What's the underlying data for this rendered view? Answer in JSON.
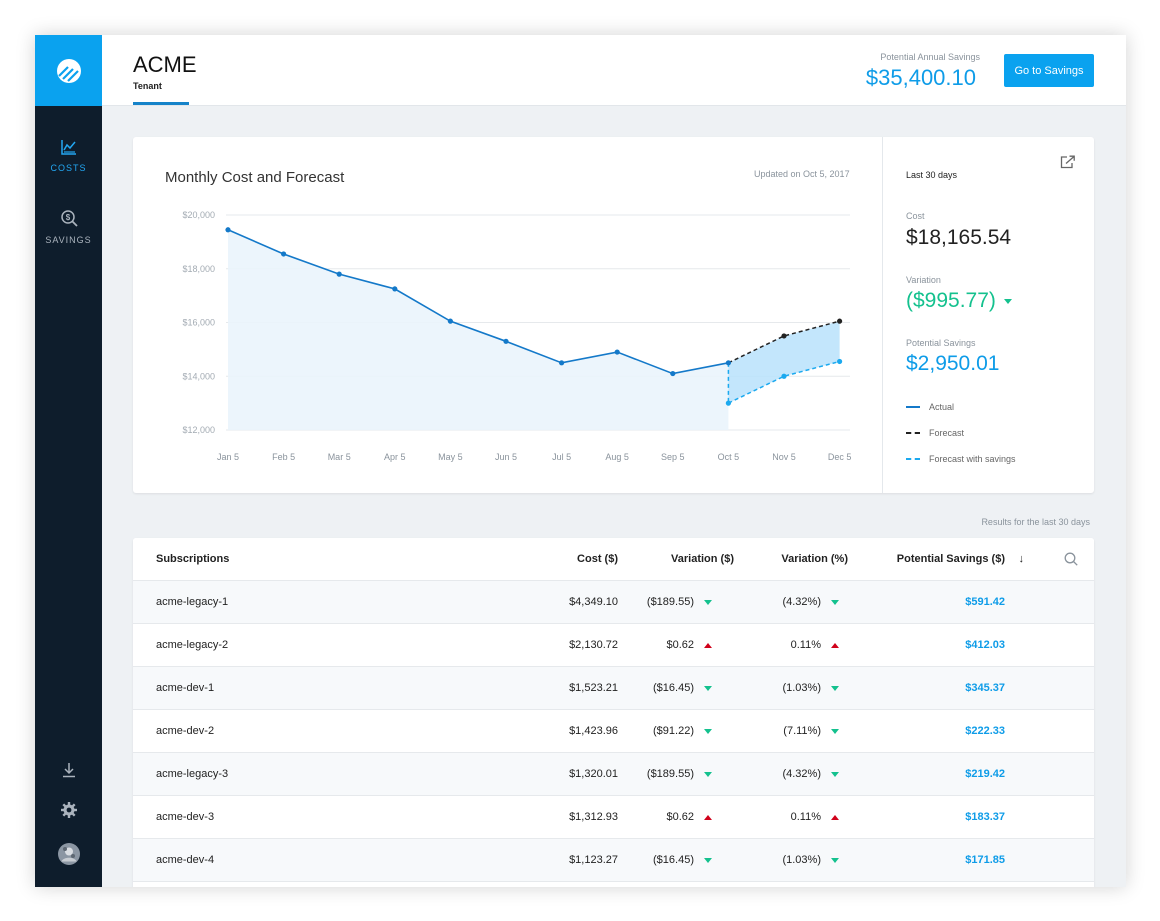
{
  "sidebar": {
    "nav": [
      {
        "label": "COSTS",
        "icon": "chart-line-icon",
        "active": true
      },
      {
        "label": "SAVINGS",
        "icon": "dollar-search-icon",
        "active": false
      }
    ],
    "bottom_icons": [
      "download-icon",
      "gear-icon",
      "avatar"
    ]
  },
  "header": {
    "tenant_name": "ACME",
    "tenant_label": "Tenant",
    "savings_caption": "Potential Annual Savings",
    "savings_total": "$35,400.10",
    "go_button": "Go to Savings"
  },
  "chart_card": {
    "title": "Monthly Cost and Forecast",
    "updated": "Updated on Oct 5, 2017"
  },
  "stats": {
    "period": "Last 30 days",
    "cost_label": "Cost",
    "cost_value": "$18,165.54",
    "variation_label": "Variation",
    "variation_value": "($995.77)",
    "savings_label": "Potential Savings",
    "savings_value": "$2,950.01",
    "legend": [
      {
        "label": "Actual",
        "style": "solid",
        "color": "#1479c9"
      },
      {
        "label": "Forecast",
        "style": "dashed",
        "color": "#222222"
      },
      {
        "label": "Forecast with savings",
        "style": "dashed",
        "color": "#1ba9ef"
      }
    ]
  },
  "chart_data": {
    "type": "line",
    "title": "Monthly Cost and Forecast",
    "categories": [
      "Jan 5",
      "Feb 5",
      "Mar 5",
      "Apr 5",
      "May 5",
      "Jun 5",
      "Jul 5",
      "Aug 5",
      "Sep 5",
      "Oct 5",
      "Nov 5",
      "Dec 5"
    ],
    "y_ticks": [
      "$20,000",
      "$18,000",
      "$16,000",
      "$14,000",
      "$12,000"
    ],
    "ylim": [
      12000,
      20000
    ],
    "grid": true,
    "legend_placement": "right",
    "series": [
      {
        "name": "Actual",
        "style": "solid",
        "color": "#1479c9",
        "values": [
          19450,
          18550,
          17800,
          17250,
          16050,
          15300,
          14500,
          14900,
          14100,
          14500,
          null,
          null
        ]
      },
      {
        "name": "Forecast",
        "style": "dashed",
        "color": "#222222",
        "values": [
          null,
          null,
          null,
          null,
          null,
          null,
          null,
          null,
          null,
          14500,
          15500,
          16050
        ]
      },
      {
        "name": "Forecast with savings",
        "style": "dashed",
        "color": "#1ba9ef",
        "values": [
          null,
          null,
          null,
          null,
          null,
          null,
          null,
          null,
          null,
          13000,
          14000,
          14550
        ]
      }
    ]
  },
  "results_caption": "Results for the last 30 days",
  "table": {
    "headers": {
      "name": "Subscriptions",
      "cost": "Cost ($)",
      "variation": "Variation ($)",
      "variation_pct": "Variation (%)",
      "savings": "Potential Savings ($)",
      "sort_indicator": "↓"
    },
    "rows": [
      {
        "name": "acme-legacy-1",
        "cost": "$4,349.10",
        "variation": "($189.55)",
        "variation_pct": "(4.32%)",
        "trend": "down",
        "savings": "$591.42"
      },
      {
        "name": "acme-legacy-2",
        "cost": "$2,130.72",
        "variation": "$0.62",
        "variation_pct": "0.11%",
        "trend": "up",
        "savings": "$412.03"
      },
      {
        "name": "acme-dev-1",
        "cost": "$1,523.21",
        "variation": "($16.45)",
        "variation_pct": "(1.03%)",
        "trend": "down",
        "savings": "$345.37"
      },
      {
        "name": "acme-dev-2",
        "cost": "$1,423.96",
        "variation": "($91.22)",
        "variation_pct": "(7.11%)",
        "trend": "down",
        "savings": "$222.33"
      },
      {
        "name": "acme-legacy-3",
        "cost": "$1,320.01",
        "variation": "($189.55)",
        "variation_pct": "(4.32%)",
        "trend": "down",
        "savings": "$219.42"
      },
      {
        "name": "acme-dev-3",
        "cost": "$1,312.93",
        "variation": "$0.62",
        "variation_pct": "0.11%",
        "trend": "up",
        "savings": "$183.37"
      },
      {
        "name": "acme-dev-4",
        "cost": "$1,123.27",
        "variation": "($16.45)",
        "variation_pct": "(1.03%)",
        "trend": "down",
        "savings": "$171.85"
      }
    ]
  },
  "colors": {
    "accent": "#0aa2ef",
    "sidebar": "#0e1d2c",
    "positive": "#14c18e",
    "negative": "#d0021b"
  }
}
